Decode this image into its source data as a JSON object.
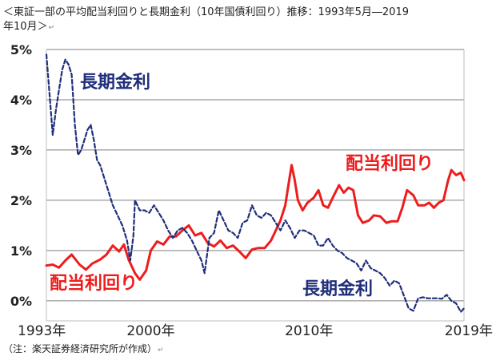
{
  "title": {
    "line1": "＜東証一部の平均配当利回りと長期金利（10年国債利回り）推移：1993年5月―2019",
    "line2": "年10月＞",
    "return_mark": "↵"
  },
  "note": "（注：楽天証券経済研究所が作成）",
  "colors": {
    "yield": "#ee1c1c",
    "bond": "#1f2e7a",
    "grid": "#7f7f7f",
    "axis": "#bdbdbd",
    "text": "#222222"
  },
  "chart_data": {
    "type": "line",
    "y_ticks": [
      "0%",
      "1%",
      "2%",
      "3%",
      "4%",
      "5%"
    ],
    "x_ticks": [
      {
        "label": "1993年",
        "x": 1993.4
      },
      {
        "label": "2000年",
        "x": 2000.0
      },
      {
        "label": "2010年",
        "x": 2010.0
      },
      {
        "label": "2019年",
        "x": 2019.8
      }
    ],
    "xlim": [
      1993.4,
      2019.8
    ],
    "ylim": [
      -0.4,
      5.0
    ],
    "grid": "horizontal",
    "annotations": [
      {
        "text": "長期金利",
        "series": "bond"
      },
      {
        "text": "配当利回り",
        "series": "yield"
      },
      {
        "text": "配当利回り",
        "series": "yield"
      },
      {
        "text": "長期金利",
        "series": "bond"
      }
    ],
    "series": [
      {
        "key": "yield",
        "style": "solid",
        "points": [
          [
            1993.4,
            0.7
          ],
          [
            1993.8,
            0.72
          ],
          [
            1994.2,
            0.66
          ],
          [
            1994.6,
            0.8
          ],
          [
            1995.0,
            0.92
          ],
          [
            1995.5,
            0.72
          ],
          [
            1995.9,
            0.62
          ],
          [
            1996.3,
            0.74
          ],
          [
            1996.8,
            0.82
          ],
          [
            1997.2,
            0.92
          ],
          [
            1997.6,
            1.1
          ],
          [
            1998.0,
            0.98
          ],
          [
            1998.3,
            1.12
          ],
          [
            1998.6,
            0.82
          ],
          [
            1999.0,
            0.55
          ],
          [
            1999.3,
            0.42
          ],
          [
            1999.7,
            0.6
          ],
          [
            2000.0,
            1.0
          ],
          [
            2000.4,
            1.18
          ],
          [
            2000.8,
            1.12
          ],
          [
            2001.2,
            1.28
          ],
          [
            2001.6,
            1.28
          ],
          [
            2002.0,
            1.4
          ],
          [
            2002.4,
            1.5
          ],
          [
            2002.8,
            1.3
          ],
          [
            2003.2,
            1.35
          ],
          [
            2003.6,
            1.15
          ],
          [
            2004.0,
            1.08
          ],
          [
            2004.4,
            1.2
          ],
          [
            2004.8,
            1.05
          ],
          [
            2005.2,
            1.1
          ],
          [
            2005.6,
            0.98
          ],
          [
            2006.0,
            0.85
          ],
          [
            2006.4,
            1.02
          ],
          [
            2006.8,
            1.05
          ],
          [
            2007.2,
            1.05
          ],
          [
            2007.6,
            1.2
          ],
          [
            2007.9,
            1.4
          ],
          [
            2008.2,
            1.6
          ],
          [
            2008.5,
            1.9
          ],
          [
            2008.7,
            2.3
          ],
          [
            2008.9,
            2.7
          ],
          [
            2009.1,
            2.4
          ],
          [
            2009.3,
            2.0
          ],
          [
            2009.6,
            1.8
          ],
          [
            2009.9,
            1.95
          ],
          [
            2010.3,
            2.05
          ],
          [
            2010.6,
            2.2
          ],
          [
            2010.9,
            1.9
          ],
          [
            2011.2,
            1.85
          ],
          [
            2011.5,
            2.05
          ],
          [
            2011.9,
            2.3
          ],
          [
            2012.2,
            2.15
          ],
          [
            2012.5,
            2.25
          ],
          [
            2012.8,
            2.2
          ],
          [
            2013.1,
            1.7
          ],
          [
            2013.4,
            1.55
          ],
          [
            2013.8,
            1.6
          ],
          [
            2014.1,
            1.7
          ],
          [
            2014.5,
            1.68
          ],
          [
            2014.9,
            1.55
          ],
          [
            2015.2,
            1.58
          ],
          [
            2015.6,
            1.58
          ],
          [
            2015.9,
            1.85
          ],
          [
            2016.2,
            2.2
          ],
          [
            2016.6,
            2.1
          ],
          [
            2016.9,
            1.9
          ],
          [
            2017.3,
            1.9
          ],
          [
            2017.6,
            1.95
          ],
          [
            2017.9,
            1.85
          ],
          [
            2018.2,
            1.95
          ],
          [
            2018.5,
            2.0
          ],
          [
            2018.8,
            2.4
          ],
          [
            2019.0,
            2.6
          ],
          [
            2019.3,
            2.5
          ],
          [
            2019.6,
            2.55
          ],
          [
            2019.8,
            2.4
          ]
        ]
      },
      {
        "key": "bond",
        "style": "dashed",
        "points": [
          [
            1993.4,
            4.9
          ],
          [
            1993.6,
            4.1
          ],
          [
            1993.8,
            3.3
          ],
          [
            1994.0,
            3.8
          ],
          [
            1994.2,
            4.2
          ],
          [
            1994.4,
            4.6
          ],
          [
            1994.6,
            4.8
          ],
          [
            1994.8,
            4.7
          ],
          [
            1995.0,
            4.5
          ],
          [
            1995.2,
            3.5
          ],
          [
            1995.4,
            2.9
          ],
          [
            1995.6,
            3.0
          ],
          [
            1995.8,
            3.2
          ],
          [
            1996.0,
            3.4
          ],
          [
            1996.2,
            3.5
          ],
          [
            1996.4,
            3.2
          ],
          [
            1996.6,
            2.8
          ],
          [
            1996.8,
            2.7
          ],
          [
            1997.0,
            2.5
          ],
          [
            1997.3,
            2.2
          ],
          [
            1997.6,
            1.9
          ],
          [
            1997.9,
            1.7
          ],
          [
            1998.2,
            1.5
          ],
          [
            1998.5,
            1.2
          ],
          [
            1998.7,
            0.8
          ],
          [
            1998.9,
            1.3
          ],
          [
            1999.0,
            2.0
          ],
          [
            1999.3,
            1.8
          ],
          [
            1999.6,
            1.8
          ],
          [
            1999.9,
            1.75
          ],
          [
            2000.2,
            1.9
          ],
          [
            2000.5,
            1.75
          ],
          [
            2000.8,
            1.6
          ],
          [
            2001.1,
            1.4
          ],
          [
            2001.4,
            1.25
          ],
          [
            2001.7,
            1.4
          ],
          [
            2002.0,
            1.45
          ],
          [
            2002.3,
            1.35
          ],
          [
            2002.6,
            1.2
          ],
          [
            2002.9,
            1.0
          ],
          [
            2003.2,
            0.8
          ],
          [
            2003.4,
            0.55
          ],
          [
            2003.7,
            1.25
          ],
          [
            2004.0,
            1.35
          ],
          [
            2004.3,
            1.8
          ],
          [
            2004.6,
            1.6
          ],
          [
            2004.9,
            1.4
          ],
          [
            2005.2,
            1.35
          ],
          [
            2005.5,
            1.25
          ],
          [
            2005.8,
            1.55
          ],
          [
            2006.1,
            1.6
          ],
          [
            2006.4,
            1.9
          ],
          [
            2006.7,
            1.7
          ],
          [
            2007.0,
            1.65
          ],
          [
            2007.3,
            1.75
          ],
          [
            2007.6,
            1.7
          ],
          [
            2007.9,
            1.55
          ],
          [
            2008.2,
            1.4
          ],
          [
            2008.5,
            1.6
          ],
          [
            2008.8,
            1.45
          ],
          [
            2009.1,
            1.25
          ],
          [
            2009.4,
            1.4
          ],
          [
            2009.7,
            1.4
          ],
          [
            2010.0,
            1.35
          ],
          [
            2010.3,
            1.3
          ],
          [
            2010.6,
            1.1
          ],
          [
            2010.9,
            1.1
          ],
          [
            2011.2,
            1.25
          ],
          [
            2011.5,
            1.1
          ],
          [
            2011.8,
            1.0
          ],
          [
            2012.1,
            0.95
          ],
          [
            2012.4,
            0.85
          ],
          [
            2012.7,
            0.8
          ],
          [
            2013.0,
            0.75
          ],
          [
            2013.3,
            0.6
          ],
          [
            2013.6,
            0.8
          ],
          [
            2013.9,
            0.65
          ],
          [
            2014.2,
            0.6
          ],
          [
            2014.5,
            0.55
          ],
          [
            2014.8,
            0.45
          ],
          [
            2015.1,
            0.3
          ],
          [
            2015.4,
            0.4
          ],
          [
            2015.7,
            0.35
          ],
          [
            2016.0,
            0.1
          ],
          [
            2016.3,
            -0.15
          ],
          [
            2016.6,
            -0.2
          ],
          [
            2016.9,
            0.05
          ],
          [
            2017.2,
            0.07
          ],
          [
            2017.5,
            0.05
          ],
          [
            2017.8,
            0.05
          ],
          [
            2018.1,
            0.05
          ],
          [
            2018.4,
            0.04
          ],
          [
            2018.7,
            0.12
          ],
          [
            2019.0,
            0.0
          ],
          [
            2019.3,
            -0.05
          ],
          [
            2019.6,
            -0.22
          ],
          [
            2019.8,
            -0.15
          ]
        ]
      }
    ]
  }
}
